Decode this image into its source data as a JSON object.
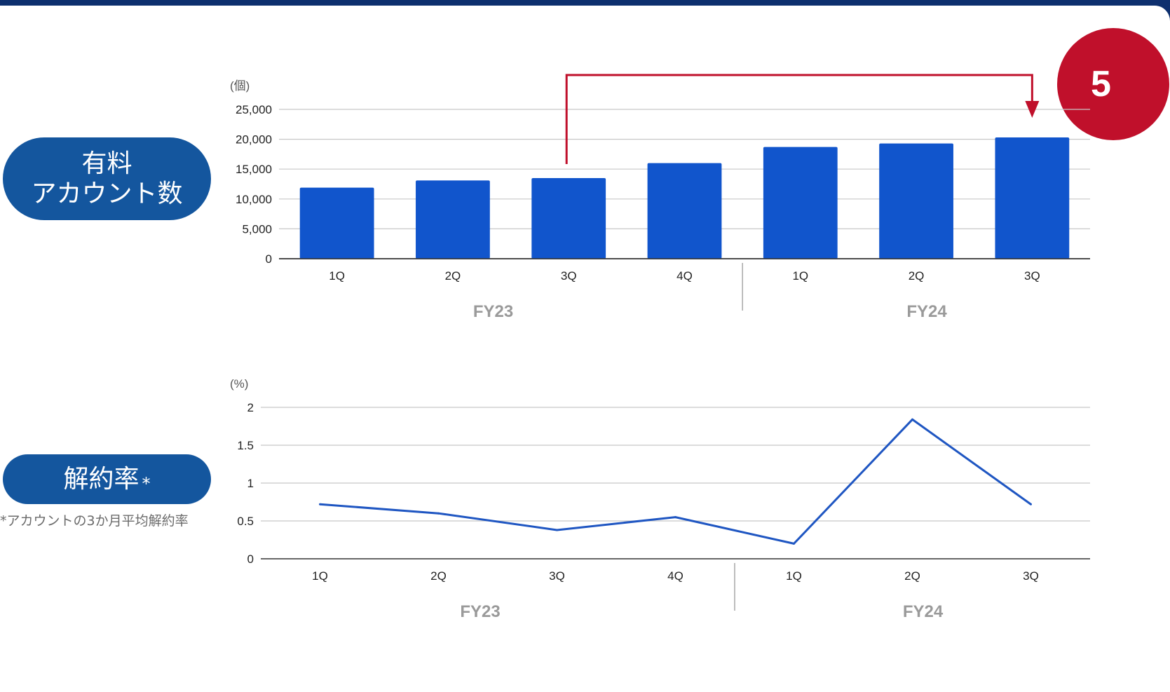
{
  "labels": {
    "accounts_pill_line1": "有料",
    "accounts_pill_line2": "アカウント数",
    "churn_pill": "解約率",
    "churn_pill_mark": "*",
    "churn_note": "*アカウントの3か月平均解約率",
    "badge_text": "5"
  },
  "colors": {
    "bar": "#1155cc",
    "line": "#1f56c2",
    "pill": "#14569e",
    "arrow": "#c0102b",
    "group_label": "#9a9a9a"
  },
  "chart_data": [
    {
      "type": "bar",
      "unit_label": "(個)",
      "categories": [
        "1Q",
        "2Q",
        "3Q",
        "4Q",
        "1Q",
        "2Q",
        "3Q"
      ],
      "groups": [
        {
          "label": "FY23",
          "count": 4
        },
        {
          "label": "FY24",
          "count": 3
        }
      ],
      "values": [
        11900,
        13100,
        13500,
        16000,
        18700,
        19300,
        20300
      ],
      "ylim": [
        0,
        25000
      ],
      "yticks": [
        0,
        5000,
        10000,
        15000,
        20000,
        25000
      ],
      "ytick_labels": [
        "0",
        "5,000",
        "10,000",
        "15,000",
        "20,000",
        "25,000"
      ],
      "grid": true,
      "annotation": {
        "type": "arrow",
        "from_category_index": 2,
        "to_category_index": 6
      }
    },
    {
      "type": "line",
      "unit_label": "(%)",
      "categories": [
        "1Q",
        "2Q",
        "3Q",
        "4Q",
        "1Q",
        "2Q",
        "3Q"
      ],
      "groups": [
        {
          "label": "FY23",
          "count": 4
        },
        {
          "label": "FY24",
          "count": 3
        }
      ],
      "values": [
        0.72,
        0.6,
        0.38,
        0.55,
        0.2,
        1.84,
        0.72
      ],
      "ylim": [
        0,
        2
      ],
      "yticks": [
        0,
        0.5,
        1,
        1.5,
        2
      ],
      "ytick_labels": [
        "0",
        "0.5",
        "1",
        "1.5",
        "2"
      ],
      "grid": true
    }
  ]
}
